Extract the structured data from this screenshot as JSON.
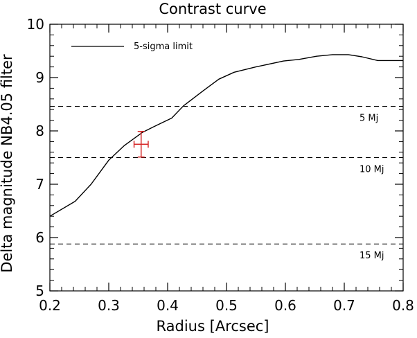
{
  "chart_data": {
    "type": "line",
    "title": "Contrast curve",
    "xlabel": "Radius [Arcsec]",
    "ylabel": "Delta magnitude NB4.05 filter",
    "xlim": [
      0.2,
      0.8
    ],
    "ylim": [
      5,
      10
    ],
    "x_ticks": [
      0.2,
      0.3,
      0.4,
      0.5,
      0.6,
      0.7,
      0.8
    ],
    "x_tick_labels": [
      "0.2",
      "0.3",
      "0.4",
      "0.5",
      "0.6",
      "0.7",
      "0.8"
    ],
    "y_ticks": [
      5,
      6,
      7,
      8,
      9,
      10
    ],
    "y_tick_labels": [
      "5",
      "6",
      "7",
      "8",
      "9",
      "10"
    ],
    "grid": false,
    "legend_position": "top-left",
    "series": [
      {
        "name": "5-sigma limit",
        "color": "#000000",
        "style": "solid",
        "x": [
          0.2,
          0.243,
          0.27,
          0.3,
          0.327,
          0.357,
          0.377,
          0.407,
          0.427,
          0.46,
          0.487,
          0.513,
          0.55,
          0.597,
          0.623,
          0.653,
          0.68,
          0.707,
          0.73,
          0.757,
          0.8
        ],
        "y": [
          6.4,
          6.68,
          7.0,
          7.45,
          7.73,
          7.97,
          8.08,
          8.24,
          8.47,
          8.75,
          8.97,
          9.1,
          9.2,
          9.31,
          9.34,
          9.4,
          9.43,
          9.43,
          9.39,
          9.32,
          9.32
        ]
      }
    ],
    "reference_lines": [
      {
        "y": 8.46,
        "label": "5 Mj",
        "style": "dashed",
        "color": "#000000"
      },
      {
        "y": 7.5,
        "label": "10 Mj",
        "style": "dashed",
        "color": "#000000"
      },
      {
        "y": 5.88,
        "label": "15 Mj",
        "style": "dashed",
        "color": "#000000"
      }
    ],
    "error_point": {
      "x": 0.355,
      "y": 7.75,
      "x_err": 0.012,
      "y_err": 0.24,
      "color": "#d62828"
    }
  }
}
